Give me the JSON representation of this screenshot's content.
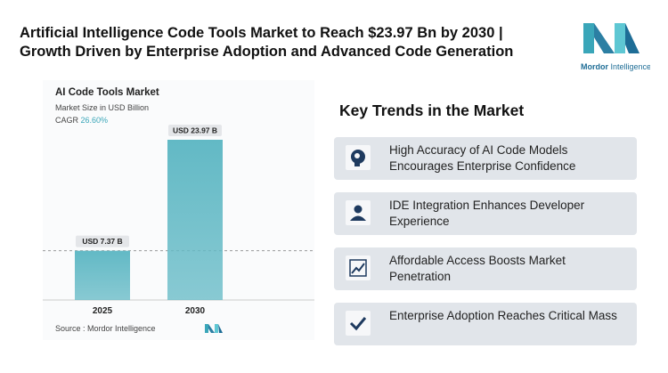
{
  "header": {
    "title_line1": "Artificial Intelligence Code Tools Market to Reach $23.97 Bn by 2030 |",
    "title_line2": "Growth Driven by Enterprise Adoption and Advanced Code Generation"
  },
  "logo": {
    "text_bold": "Mordor",
    "text_light": "Intelligence"
  },
  "chart_data": {
    "type": "bar",
    "title": "AI  Code Tools Market",
    "subtitle": "Market Size in USD Billion",
    "cagr_label": "CAGR",
    "cagr_value": "26.60%",
    "categories": [
      "2025",
      "2030"
    ],
    "values": [
      7.37,
      23.97
    ],
    "value_labels": [
      "USD 7.37 B",
      "USD 23.97 B"
    ],
    "color": "#62b9c5",
    "source": "Source : Mordor Intelligence"
  },
  "trends": {
    "title": "Key Trends in the Market",
    "items": [
      "High Accuracy of AI Code Models Encourages Enterprise Confidence",
      "IDE Integration Enhances Developer Experience",
      "Affordable Access Boosts Market Penetration",
      "Enterprise Adoption Reaches Critical Mass"
    ]
  }
}
